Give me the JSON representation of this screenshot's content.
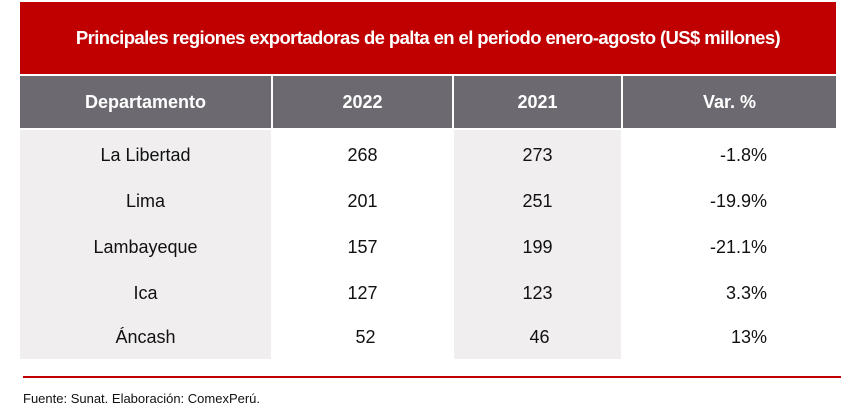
{
  "title": "Principales regiones exportadoras de palta en el periodo enero-agosto (US$ millones)",
  "table": {
    "headers": [
      "Departamento",
      "2022",
      "2021",
      "Var. %"
    ],
    "rows": [
      {
        "departamento": "La Libertad",
        "y2022": "268",
        "y2021": "273",
        "var": "-1.8%"
      },
      {
        "departamento": "Lima",
        "y2022": "201",
        "y2021": "251",
        "var": "-19.9%"
      },
      {
        "departamento": "Lambayeque",
        "y2022": "157",
        "y2021": "199",
        "var": "-21.1%"
      },
      {
        "departamento": "Ica",
        "y2022": "127",
        "y2021": "123",
        "var": "3.3%"
      },
      {
        "departamento": "Áncash",
        "y2022": "52",
        "y2021": "46",
        "var": "13%"
      }
    ]
  },
  "footer": "Fuente: Sunat. Elaboración: ComexPerú.",
  "colors": {
    "title_bg": "#c00000",
    "header_bg": "#6c6a70",
    "shaded_col": "#f0eeef"
  }
}
